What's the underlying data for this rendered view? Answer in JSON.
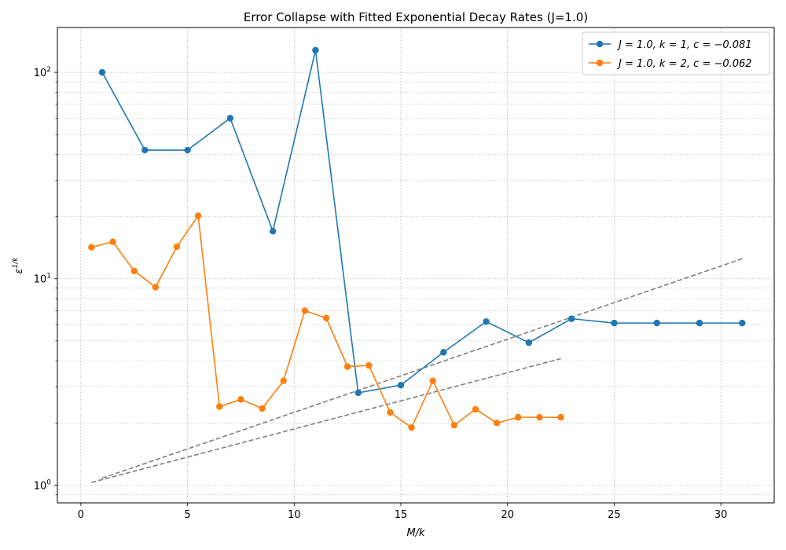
{
  "chart_data": {
    "type": "line",
    "title": "Error Collapse with Fitted Exponential Decay Rates (J=1.0)",
    "xlabel": "M/k",
    "ylabel": "ε^{1/k}",
    "xlim": [
      -1.1,
      32.5
    ],
    "ylim": [
      0.82,
      165
    ],
    "yscale": "log",
    "x_ticks": [
      0,
      5,
      10,
      15,
      20,
      25,
      30
    ],
    "x_tick_labels": [
      "0",
      "5",
      "10",
      "15",
      "20",
      "25",
      "30"
    ],
    "y_major_ticks": [
      1,
      10,
      100
    ],
    "y_tick_labels": [
      {
        "base": "10",
        "exp": "0"
      },
      {
        "base": "10",
        "exp": "1"
      },
      {
        "base": "10",
        "exp": "2"
      }
    ],
    "grid": true,
    "legend_position": "top-right",
    "series": [
      {
        "name": "J = 1.0,  k = 1,  c = −0.081",
        "legend": {
          "J": "1.0",
          "k": "1",
          "c": "−0.081"
        },
        "color": "#1f77b4",
        "x": [
          1,
          3,
          5,
          7,
          9,
          11,
          13,
          15,
          17,
          19,
          21,
          23,
          25,
          27,
          29,
          31
        ],
        "y": [
          100,
          42,
          42,
          60,
          17,
          128,
          2.8,
          3.05,
          4.4,
          6.2,
          4.9,
          6.4,
          6.1,
          6.1,
          6.1,
          6.1
        ]
      },
      {
        "name": "J = 1.0,  k = 2,  c = −0.062",
        "legend": {
          "J": "1.0",
          "k": "2",
          "c": "−0.062"
        },
        "color": "#ff7f0e",
        "x": [
          0.5,
          1.5,
          2.5,
          3.5,
          4.5,
          5.5,
          6.5,
          7.5,
          8.5,
          9.5,
          10.5,
          11.5,
          12.5,
          13.5,
          14.5,
          15.5,
          16.5,
          17.5,
          18.5,
          19.5,
          20.5,
          21.5,
          22.5
        ],
        "y": [
          14.2,
          15.1,
          10.9,
          9.1,
          14.3,
          20.2,
          2.4,
          2.6,
          2.35,
          3.2,
          7.0,
          6.45,
          3.75,
          3.8,
          2.25,
          1.9,
          3.2,
          1.95,
          2.33,
          2.0,
          2.13,
          2.13,
          2.13
        ]
      }
    ],
    "fit_lines": [
      {
        "x": [
          1,
          31
        ],
        "y": [
          1.08,
          12.5
        ],
        "color": "#808080"
      },
      {
        "x": [
          0.5,
          22.5
        ],
        "y": [
          1.03,
          4.1
        ],
        "color": "#808080"
      }
    ]
  }
}
